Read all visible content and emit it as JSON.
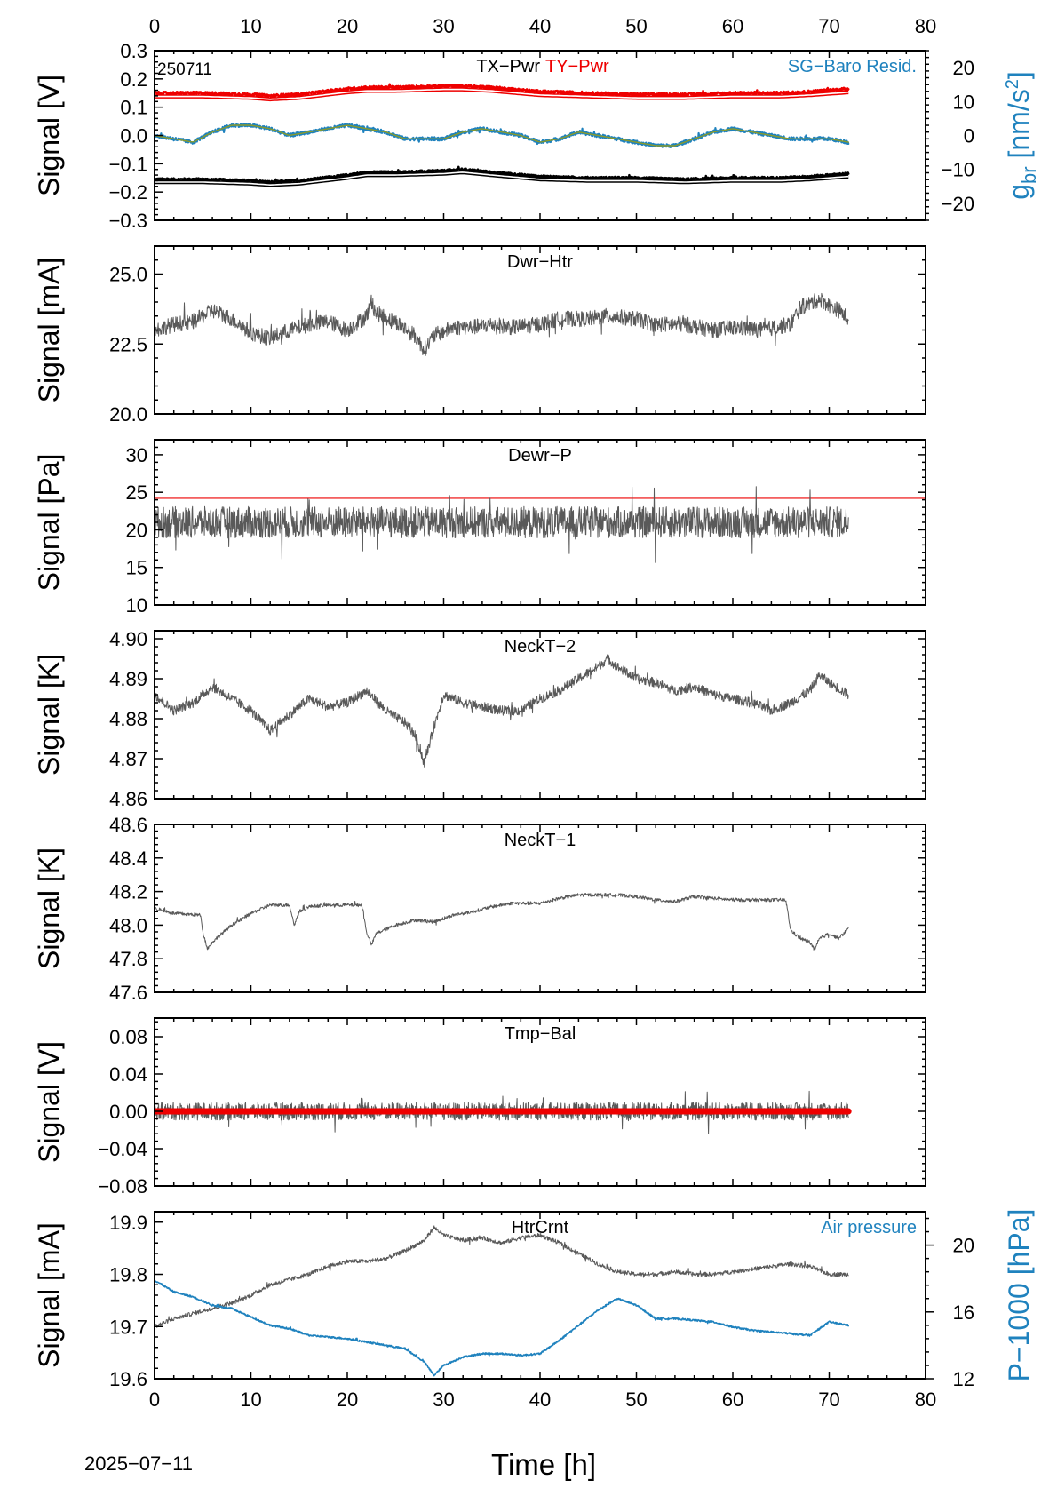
{
  "figure": {
    "id_label": "250711",
    "date_label": "2025−07−11",
    "x_axis_label": "Time [h]",
    "x_tick_labels": [
      "0",
      "10",
      "20",
      "30",
      "40",
      "50",
      "60",
      "70",
      "80"
    ]
  },
  "colors": {
    "trace": "#595959",
    "red": "#ee0000",
    "blue": "#1f82be",
    "black": "#000000",
    "olive": "#8a9a2a"
  },
  "chart_data": [
    {
      "type": "line",
      "panel_title": "TX−Pwr",
      "panel_title_2": "TY−Pwr",
      "right_title": "SG−Baro Resid.",
      "ylabel": "Signal [V]",
      "ylim": [
        -0.3,
        0.3
      ],
      "y_ticks": [
        -0.3,
        -0.2,
        -0.1,
        0.0,
        0.1,
        0.2,
        0.3
      ],
      "y_tick_labels": [
        "−0.3",
        "−0.2",
        "−0.1",
        "0.0",
        "0.1",
        "0.2",
        "0.3"
      ],
      "xlim": [
        0,
        80
      ],
      "right_axis": {
        "label_main": "g",
        "label_sub": "br",
        "label_unit": " [nm/s",
        "label_sup": "2",
        "label_close": "]",
        "ylim": [
          -25,
          25
        ],
        "y_ticks": [
          -20,
          -10,
          0,
          10,
          20
        ],
        "y_tick_labels": [
          "−20",
          "−10",
          "0",
          "10",
          "20"
        ]
      },
      "series": [
        {
          "key": "tx",
          "x": [
            0,
            5,
            10,
            12,
            15,
            20,
            22,
            25,
            30,
            32,
            35,
            40,
            45,
            50,
            55,
            60,
            65,
            68,
            70,
            72
          ],
          "values": [
            -0.155,
            -0.155,
            -0.16,
            -0.165,
            -0.16,
            -0.14,
            -0.13,
            -0.13,
            -0.125,
            -0.12,
            -0.13,
            -0.145,
            -0.15,
            -0.15,
            -0.155,
            -0.15,
            -0.15,
            -0.145,
            -0.14,
            -0.135
          ],
          "noise": 0.004
        },
        {
          "key": "tx_model",
          "x": [
            0,
            5,
            10,
            12,
            15,
            20,
            22,
            25,
            30,
            32,
            35,
            40,
            45,
            50,
            55,
            60,
            65,
            68,
            70,
            72
          ],
          "values": [
            -0.165,
            -0.165,
            -0.17,
            -0.175,
            -0.17,
            -0.15,
            -0.14,
            -0.14,
            -0.135,
            -0.13,
            -0.14,
            -0.155,
            -0.16,
            -0.16,
            -0.165,
            -0.16,
            -0.16,
            -0.155,
            -0.15,
            -0.145
          ],
          "noise": 0
        },
        {
          "key": "ty",
          "x": [
            0,
            5,
            10,
            12,
            15,
            20,
            22,
            25,
            30,
            32,
            35,
            40,
            45,
            50,
            55,
            60,
            65,
            68,
            70,
            72
          ],
          "values": [
            0.15,
            0.15,
            0.145,
            0.14,
            0.145,
            0.165,
            0.17,
            0.17,
            0.175,
            0.175,
            0.17,
            0.155,
            0.15,
            0.145,
            0.145,
            0.15,
            0.15,
            0.155,
            0.16,
            0.165
          ],
          "noise": 0.005
        },
        {
          "key": "ty_model",
          "x": [
            0,
            5,
            10,
            12,
            15,
            20,
            22,
            25,
            30,
            32,
            35,
            40,
            45,
            50,
            55,
            60,
            65,
            68,
            70,
            72
          ],
          "values": [
            0.138,
            0.138,
            0.133,
            0.128,
            0.133,
            0.153,
            0.158,
            0.158,
            0.163,
            0.163,
            0.158,
            0.143,
            0.138,
            0.133,
            0.133,
            0.138,
            0.138,
            0.143,
            0.148,
            0.153
          ],
          "noise": 0
        },
        {
          "key": "sg_resid",
          "right_axis": true,
          "x": [
            0,
            2,
            4,
            6,
            8,
            10,
            12,
            14,
            16,
            18,
            20,
            22,
            24,
            26,
            28,
            30,
            32,
            34,
            36,
            38,
            40,
            42,
            44,
            46,
            48,
            50,
            52,
            54,
            56,
            58,
            60,
            62,
            64,
            66,
            68,
            70,
            72
          ],
          "values": [
            0,
            -1,
            -2,
            1,
            3,
            3,
            2,
            0,
            1,
            2,
            3,
            2,
            1,
            -1,
            -1,
            -1,
            1,
            2,
            1,
            0,
            -2,
            -1,
            1,
            0,
            -1,
            -2,
            -3,
            -3,
            -1,
            1,
            2,
            1,
            0,
            -1,
            -1,
            -1,
            -2
          ],
          "noise": 0.5
        },
        {
          "key": "sg_model",
          "right_axis": true,
          "x": [
            0,
            2,
            4,
            6,
            8,
            10,
            12,
            14,
            16,
            18,
            20,
            22,
            24,
            26,
            28,
            30,
            32,
            34,
            36,
            38,
            40,
            42,
            44,
            46,
            48,
            50,
            52,
            54,
            56,
            58,
            60,
            62,
            64,
            66,
            68,
            70,
            72
          ],
          "values": [
            0,
            -1,
            -2,
            1,
            3,
            3,
            2,
            0,
            1,
            2,
            3,
            2,
            1,
            -1,
            -1,
            -1,
            1,
            2,
            1,
            0,
            -2,
            -1,
            1,
            0,
            -1,
            -2,
            -3,
            -3,
            -1,
            1,
            2,
            1,
            0,
            -1,
            -1,
            -1,
            -2
          ],
          "noise": 0
        }
      ]
    },
    {
      "type": "line",
      "panel_title": "Dwr−Htr",
      "ylabel": "Signal [mA]",
      "ylim": [
        20.0,
        26.0
      ],
      "y_ticks": [
        20.0,
        22.5,
        25.0
      ],
      "y_tick_labels": [
        "20.0",
        "22.5",
        "25.0"
      ],
      "xlim": [
        0,
        80
      ],
      "series": [
        {
          "key": "main",
          "x": [
            0,
            2,
            4,
            5,
            6,
            8,
            10,
            12,
            14,
            16,
            18,
            20,
            22,
            22.5,
            23,
            25,
            27,
            28,
            29,
            31,
            33,
            35,
            37,
            40,
            42,
            45,
            47,
            50,
            52,
            55,
            58,
            60,
            63,
            66,
            67,
            69,
            71,
            72
          ],
          "values": [
            23.0,
            23.2,
            23.3,
            23.5,
            23.7,
            23.4,
            22.9,
            22.7,
            23.0,
            23.2,
            23.3,
            23.0,
            23.5,
            24.0,
            23.6,
            23.3,
            22.8,
            22.3,
            22.8,
            23.1,
            23.1,
            23.2,
            23.1,
            23.2,
            23.4,
            23.4,
            23.5,
            23.4,
            23.2,
            23.2,
            23.0,
            23.1,
            23.0,
            23.2,
            23.8,
            24.1,
            23.7,
            23.4
          ],
          "noise": 0.28
        }
      ]
    },
    {
      "type": "line",
      "panel_title": "Dewr−P",
      "ylabel": "Signal [Pa]",
      "ylim": [
        10,
        32
      ],
      "y_ticks": [
        10,
        15,
        20,
        25,
        30
      ],
      "y_tick_labels": [
        "10",
        "15",
        "20",
        "25",
        "30"
      ],
      "xlim": [
        0,
        80
      ],
      "threshold": 24.2,
      "series": [
        {
          "key": "main",
          "x": [
            0,
            72
          ],
          "values": [
            21,
            21
          ],
          "noise": 2.1
        }
      ]
    },
    {
      "type": "line",
      "panel_title": "NeckT−2",
      "ylabel": "Signal [K]",
      "ylim": [
        4.86,
        4.902
      ],
      "y_ticks": [
        4.86,
        4.87,
        4.88,
        4.89,
        4.9
      ],
      "y_tick_labels": [
        "4.86",
        "4.87",
        "4.88",
        "4.89",
        "4.90"
      ],
      "xlim": [
        0,
        80
      ],
      "series": [
        {
          "key": "main",
          "x": [
            0,
            2,
            4,
            6,
            8,
            10,
            12,
            14,
            16,
            18,
            20,
            22,
            24,
            26,
            27,
            28,
            29,
            30,
            32,
            34,
            36,
            38,
            40,
            42,
            44,
            46,
            47,
            48,
            50,
            52,
            54,
            56,
            58,
            60,
            62,
            64,
            66,
            68,
            69,
            70,
            72
          ],
          "values": [
            4.886,
            4.882,
            4.884,
            4.888,
            4.885,
            4.882,
            4.877,
            4.881,
            4.885,
            4.883,
            4.884,
            4.887,
            4.882,
            4.879,
            4.876,
            4.869,
            4.878,
            4.886,
            4.884,
            4.883,
            4.882,
            4.882,
            4.885,
            4.887,
            4.89,
            4.893,
            4.895,
            4.893,
            4.89,
            4.889,
            4.887,
            4.888,
            4.886,
            4.885,
            4.884,
            4.882,
            4.884,
            4.887,
            4.891,
            4.889,
            4.886
          ],
          "noise": 0.0012
        }
      ]
    },
    {
      "type": "line",
      "panel_title": "NeckT−1",
      "ylabel": "Signal [K]",
      "ylim": [
        47.6,
        48.6
      ],
      "y_ticks": [
        47.6,
        47.8,
        48.0,
        48.2,
        48.4,
        48.6
      ],
      "y_tick_labels": [
        "47.6",
        "47.8",
        "48.0",
        "48.2",
        "48.4",
        "48.6"
      ],
      "xlim": [
        0,
        80
      ],
      "series": [
        {
          "key": "main",
          "x": [
            0,
            2,
            4.8,
            5,
            5.5,
            6,
            8,
            10,
            12,
            14,
            14.5,
            15,
            16,
            18,
            21.5,
            22,
            22.5,
            23,
            25,
            27,
            29,
            31,
            33,
            35,
            37,
            40,
            42,
            44,
            46,
            48,
            50,
            52,
            54,
            56,
            58,
            60,
            62,
            64,
            65.5,
            66,
            67,
            68,
            68.5,
            69,
            70,
            71,
            72
          ],
          "values": [
            48.1,
            48.07,
            48.06,
            47.96,
            47.86,
            47.9,
            48.0,
            48.07,
            48.12,
            48.12,
            48.0,
            48.08,
            48.11,
            48.12,
            48.12,
            47.96,
            47.88,
            47.95,
            48.0,
            48.03,
            48.02,
            48.06,
            48.08,
            48.11,
            48.13,
            48.13,
            48.16,
            48.18,
            48.18,
            48.18,
            48.17,
            48.15,
            48.14,
            48.17,
            48.16,
            48.15,
            48.15,
            48.15,
            48.15,
            47.97,
            47.92,
            47.9,
            47.85,
            47.92,
            47.95,
            47.92,
            47.98
          ],
          "noise": 0.01
        }
      ]
    },
    {
      "type": "line",
      "panel_title": "Tmp−Bal",
      "ylabel": "Signal [V]",
      "ylim": [
        -0.08,
        0.1
      ],
      "y_ticks": [
        -0.08,
        -0.04,
        0.0,
        0.04,
        0.08
      ],
      "y_tick_labels": [
        "−0.08",
        "−0.04",
        "0.00",
        "0.04",
        "0.08"
      ],
      "xlim": [
        0,
        80
      ],
      "series": [
        {
          "key": "main",
          "x": [
            0,
            72
          ],
          "values": [
            0,
            0
          ],
          "noise": 0.0095
        },
        {
          "key": "zero",
          "x": [
            0,
            72
          ],
          "values": [
            0,
            0
          ],
          "noise": 0
        }
      ]
    },
    {
      "type": "line",
      "panel_title": "HtrCrnt",
      "right_title": "Air pressure",
      "ylabel": "Signal [mA]",
      "ylim": [
        19.6,
        19.92
      ],
      "y_ticks": [
        19.6,
        19.7,
        19.8,
        19.9
      ],
      "y_tick_labels": [
        "19.6",
        "19.7",
        "19.8",
        "19.9"
      ],
      "xlim": [
        0,
        80
      ],
      "right_axis": {
        "label_main": "P−1000 [hPa]",
        "ylim": [
          12,
          22
        ],
        "y_ticks": [
          12,
          16,
          20
        ],
        "y_tick_labels": [
          "12",
          "16",
          "20"
        ]
      },
      "series": [
        {
          "key": "main",
          "x": [
            0,
            2,
            4,
            6,
            8,
            10,
            12,
            14,
            16,
            18,
            20,
            22,
            24,
            26,
            28,
            29,
            30,
            32,
            34,
            36,
            38,
            40,
            42,
            44,
            46,
            48,
            50,
            52,
            54,
            56,
            58,
            60,
            62,
            64,
            66,
            68,
            70,
            72
          ],
          "values": [
            19.7,
            19.715,
            19.725,
            19.735,
            19.745,
            19.76,
            19.78,
            19.79,
            19.8,
            19.815,
            19.825,
            19.825,
            19.83,
            19.845,
            19.865,
            19.89,
            19.875,
            19.865,
            19.87,
            19.86,
            19.87,
            19.875,
            19.86,
            19.84,
            19.82,
            19.805,
            19.8,
            19.8,
            19.805,
            19.8,
            19.8,
            19.805,
            19.81,
            19.815,
            19.82,
            19.815,
            19.8,
            19.8
          ],
          "noise": 0.004
        },
        {
          "key": "air",
          "right_axis": true,
          "x": [
            0,
            2,
            4,
            6,
            8,
            10,
            12,
            14,
            16,
            18,
            20,
            22,
            24,
            26,
            28,
            29,
            30,
            32,
            34,
            36,
            38,
            40,
            42,
            44,
            46,
            48,
            50,
            52,
            54,
            56,
            58,
            60,
            62,
            64,
            66,
            68,
            70,
            72
          ],
          "values": [
            17.9,
            17.2,
            16.9,
            16.4,
            16.2,
            15.7,
            15.2,
            15.0,
            14.6,
            14.5,
            14.4,
            14.2,
            14.0,
            13.8,
            13.0,
            12.2,
            12.8,
            13.3,
            13.5,
            13.5,
            13.4,
            13.5,
            14.3,
            15.2,
            16.1,
            16.8,
            16.4,
            15.6,
            15.6,
            15.5,
            15.4,
            15.1,
            14.9,
            14.8,
            14.7,
            14.6,
            15.4,
            15.2
          ],
          "noise": 0.05
        }
      ]
    }
  ]
}
